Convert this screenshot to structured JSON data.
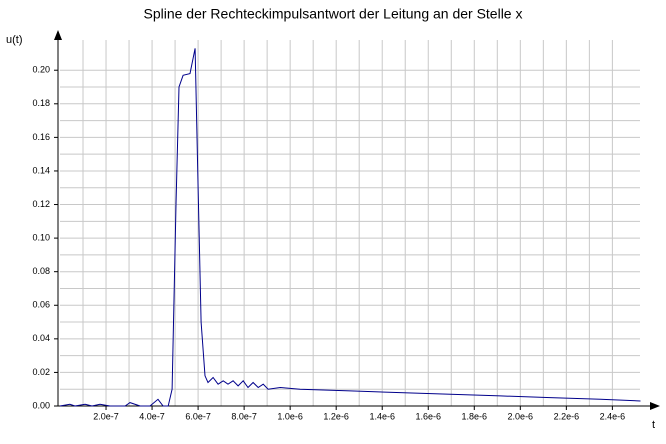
{
  "chart_data": {
    "type": "line",
    "title": "Spline der Rechteckimpulsantwort der Leitung an der Stelle x",
    "y_label": "u(t)",
    "x_label": "t",
    "x": [
      0,
      4.3e-08,
      6.5e-08,
      1.09e-07,
      1.39e-07,
      1.74e-07,
      2.17e-07,
      2.83e-07,
      3.04e-07,
      3.48e-07,
      3.91e-07,
      4.26e-07,
      4.48e-07,
      4.7e-07,
      4.87e-07,
      5.04e-07,
      5.17e-07,
      5.35e-07,
      5.65e-07,
      5.87e-07,
      6e-07,
      6.13e-07,
      6.3e-07,
      6.43e-07,
      6.65e-07,
      6.87e-07,
      7.09e-07,
      7.3e-07,
      7.52e-07,
      7.74e-07,
      7.96e-07,
      8.17e-07,
      8.39e-07,
      8.61e-07,
      8.83e-07,
      9.04e-07,
      9.57e-07,
      1.043e-06,
      1.261e-06,
      1.478e-06,
      1.696e-06,
      1.913e-06,
      2.13e-06,
      2.348e-06,
      2.522e-06
    ],
    "series": [
      {
        "name": "u",
        "color": "#00008b",
        "values": [
          0,
          0.001,
          0,
          0.001,
          0,
          0.001,
          0,
          0,
          0.002,
          0,
          0,
          0.004,
          0,
          0,
          0.01,
          0.12,
          0.19,
          0.197,
          0.198,
          0.213,
          0.13,
          0.05,
          0.018,
          0.014,
          0.017,
          0.013,
          0.015,
          0.013,
          0.015,
          0.012,
          0.015,
          0.011,
          0.014,
          0.011,
          0.013,
          0.01,
          0.011,
          0.01,
          0.009,
          0.008,
          0.007,
          0.006,
          0.005,
          0.004,
          0.003
        ]
      }
    ],
    "xlim": [
      0,
      2.52e-06
    ],
    "ylim": [
      0,
      0.218
    ],
    "xticks": [
      {
        "value": 2e-07,
        "label": "2.0e-7"
      },
      {
        "value": 4e-07,
        "label": "4.0e-7"
      },
      {
        "value": 6e-07,
        "label": "6.0e-7"
      },
      {
        "value": 8e-07,
        "label": "8.0e-7"
      },
      {
        "value": 1e-06,
        "label": "1.0e-6"
      },
      {
        "value": 1.2e-06,
        "label": "1.2e-6"
      },
      {
        "value": 1.4e-06,
        "label": "1.4e-6"
      },
      {
        "value": 1.6e-06,
        "label": "1.6e-6"
      },
      {
        "value": 1.8e-06,
        "label": "1.8e-6"
      },
      {
        "value": 2e-06,
        "label": "2.0e-6"
      },
      {
        "value": 2.2e-06,
        "label": "2.2e-6"
      },
      {
        "value": 2.4e-06,
        "label": "2.4e-6"
      }
    ],
    "yticks": [
      {
        "value": 0,
        "label": "0.00"
      },
      {
        "value": 0.02,
        "label": "0.02"
      },
      {
        "value": 0.04,
        "label": "0.04"
      },
      {
        "value": 0.06,
        "label": "0.06"
      },
      {
        "value": 0.08,
        "label": "0.08"
      },
      {
        "value": 0.1,
        "label": "0.10"
      },
      {
        "value": 0.12,
        "label": "0.12"
      },
      {
        "value": 0.14,
        "label": "0.14"
      },
      {
        "value": 0.16,
        "label": "0.16"
      },
      {
        "value": 0.18,
        "label": "0.18"
      },
      {
        "value": 0.2,
        "label": "0.20"
      }
    ],
    "grid": true
  }
}
